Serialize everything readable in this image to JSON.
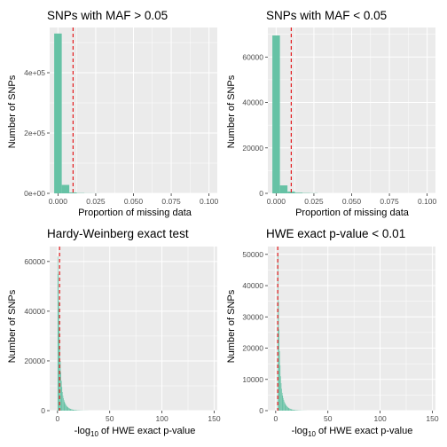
{
  "colors": {
    "bar": "#66c2a5",
    "vline": "#e41a1c",
    "panel": "#ebebeb"
  },
  "chart_data": [
    {
      "type": "bar",
      "title": "SNPs with MAF > 0.05",
      "xlabel": "Proportion of missing data",
      "ylabel": "Number of SNPs",
      "xlim": [
        -0.0055,
        0.1055
      ],
      "ylim": [
        0,
        550000
      ],
      "xticks": [
        0,
        0.025,
        0.05,
        0.075,
        0.1
      ],
      "xticklabels": [
        "0.000",
        "0.025",
        "0.050",
        "0.075",
        "0.100"
      ],
      "yticks": [
        0,
        200000,
        400000
      ],
      "yticklabels": [
        "0e+00",
        "2e+05",
        "4e+05"
      ],
      "bin_width": 0.005,
      "bin_starts": [
        -0.0025,
        0.0025,
        0.0075,
        0.0125,
        0.0175,
        0.0225
      ],
      "values": [
        530000,
        28000,
        3000,
        1000,
        400,
        200
      ],
      "threshold": 0.01,
      "grid": true,
      "legend": "none"
    },
    {
      "type": "bar",
      "title": "SNPs with MAF < 0.05",
      "xlabel": "Proportion of missing data",
      "ylabel": "Number of SNPs",
      "xlim": [
        -0.0055,
        0.1055
      ],
      "ylim": [
        0,
        73000
      ],
      "xticks": [
        0,
        0.025,
        0.05,
        0.075,
        0.1
      ],
      "xticklabels": [
        "0.000",
        "0.025",
        "0.050",
        "0.075",
        "0.100"
      ],
      "yticks": [
        0,
        20000,
        40000,
        60000
      ],
      "yticklabels": [
        "0",
        "20000",
        "40000",
        "60000"
      ],
      "bin_width": 0.005,
      "bin_starts": [
        -0.0025,
        0.0025,
        0.0075,
        0.0125,
        0.0175,
        0.0225
      ],
      "values": [
        69500,
        3500,
        800,
        300,
        150,
        80
      ],
      "threshold": 0.01,
      "grid": true,
      "legend": "none"
    },
    {
      "type": "bar",
      "title": "Hardy-Weinberg exact test",
      "xlabel_prefix": "-log",
      "xlabel_sub": "10",
      "xlabel_suffix": " of HWE exact p-value",
      "ylabel": "Number of SNPs",
      "xlim": [
        -7.5,
        153
      ],
      "ylim": [
        0,
        66000
      ],
      "xticks": [
        0,
        50,
        100,
        150
      ],
      "xticklabels": [
        "0",
        "50",
        "100",
        "150"
      ],
      "yticks": [
        0,
        20000,
        40000,
        60000
      ],
      "yticklabels": [
        "0",
        "20000",
        "40000",
        "60000"
      ],
      "bin_width": 0.5,
      "bin_starts": [
        0,
        0.5,
        1,
        1.5,
        2,
        2.5,
        3,
        3.5,
        4,
        4.5,
        5,
        5.5,
        6,
        6.5,
        7,
        7.5,
        8,
        8.5,
        9,
        9.5,
        10,
        10.5,
        11,
        11.5,
        12,
        12.5,
        13,
        13.5,
        14,
        14.5,
        15,
        15.5,
        16,
        16.5,
        17,
        17.5,
        18,
        18.5,
        19,
        19.5,
        20,
        20.5,
        21,
        21.5,
        22,
        22.5,
        23,
        23.5,
        24,
        24.5,
        25,
        25.5,
        26,
        26.5,
        27,
        27.5,
        28,
        28.5,
        29,
        29.5
      ],
      "values": [
        62000,
        55000,
        44000,
        33000,
        26000,
        20000,
        15500,
        12000,
        9500,
        7500,
        6000,
        5000,
        4200,
        3500,
        3000,
        2600,
        2200,
        1900,
        1650,
        1450,
        1250,
        1100,
        950,
        850,
        750,
        650,
        580,
        500,
        450,
        400,
        350,
        310,
        280,
        250,
        220,
        200,
        180,
        160,
        140,
        120,
        110,
        100,
        90,
        80,
        70,
        60,
        55,
        50,
        45,
        40,
        35,
        30,
        28,
        25,
        22,
        20,
        18,
        16,
        14,
        12
      ],
      "threshold": 2,
      "grid": true,
      "legend": "none"
    },
    {
      "type": "bar",
      "title": "HWE exact p-value < 0.01",
      "xlabel_prefix": "-log",
      "xlabel_sub": "10",
      "xlabel_suffix": " of HWE exact p-value",
      "ylabel": "Number of SNPs",
      "xlim": [
        -7.5,
        153
      ],
      "ylim": [
        0,
        52500
      ],
      "xticks": [
        0,
        50,
        100,
        150
      ],
      "xticklabels": [
        "0",
        "50",
        "100",
        "150"
      ],
      "yticks": [
        0,
        10000,
        20000,
        30000,
        40000,
        50000
      ],
      "yticklabels": [
        "0",
        "10000",
        "20000",
        "30000",
        "40000",
        "50000"
      ],
      "bin_width": 0.5,
      "bin_starts": [
        2,
        2.5,
        3,
        3.5,
        4,
        4.5,
        5,
        5.5,
        6,
        6.5,
        7,
        7.5,
        8,
        8.5,
        9,
        9.5,
        10,
        10.5,
        11,
        11.5,
        12,
        12.5,
        13,
        13.5,
        14,
        14.5,
        15,
        15.5,
        16,
        16.5,
        17,
        17.5,
        18,
        18.5,
        19,
        19.5,
        20,
        20.5,
        21,
        21.5,
        22,
        22.5,
        23,
        23.5,
        24,
        24.5,
        25,
        25.5,
        26,
        26.5,
        27,
        27.5,
        28,
        28.5,
        29,
        29.5
      ],
      "values": [
        50000,
        35000,
        26000,
        19000,
        14500,
        11000,
        8800,
        7000,
        5700,
        4800,
        4000,
        3400,
        2900,
        2500,
        2150,
        1850,
        1600,
        1400,
        1220,
        1060,
        920,
        800,
        700,
        620,
        540,
        470,
        410,
        360,
        320,
        280,
        250,
        220,
        195,
        170,
        150,
        135,
        120,
        105,
        95,
        85,
        75,
        65,
        58,
        52,
        46,
        40,
        35,
        31,
        27,
        24,
        21,
        18,
        16,
        14,
        12,
        10
      ],
      "threshold": 2,
      "grid": true,
      "legend": "none"
    }
  ]
}
